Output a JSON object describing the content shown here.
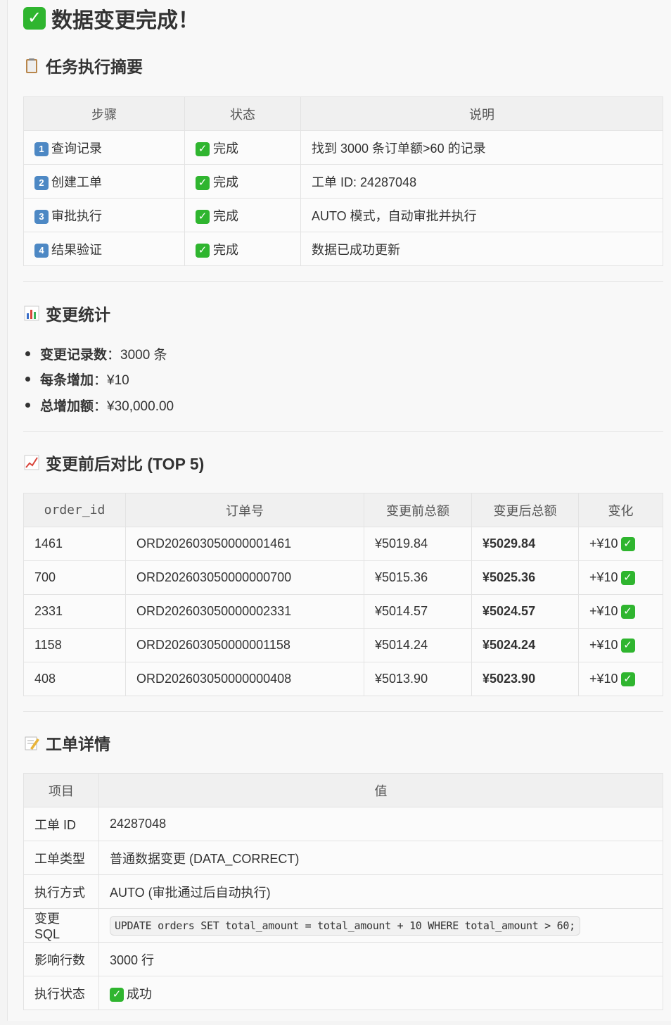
{
  "title": "数据变更完成！",
  "summary": {
    "heading": "任务执行摘要",
    "headers": [
      "步骤",
      "状态",
      "说明"
    ],
    "rows": [
      {
        "num": "1",
        "step": "查询记录",
        "status": "完成",
        "desc": "找到 3000 条订单额>60 的记录"
      },
      {
        "num": "2",
        "step": "创建工单",
        "status": "完成",
        "desc": "工单 ID: 24287048"
      },
      {
        "num": "3",
        "step": "审批执行",
        "status": "完成",
        "desc": "AUTO 模式，自动审批并执行"
      },
      {
        "num": "4",
        "step": "结果验证",
        "status": "完成",
        "desc": "数据已成功更新"
      }
    ]
  },
  "stats": {
    "heading": "变更统计",
    "items": [
      {
        "label": "变更记录数",
        "value": "：3000 条"
      },
      {
        "label": "每条增加",
        "value": "：¥10"
      },
      {
        "label": "总增加额",
        "value": "：¥30,000.00"
      }
    ]
  },
  "compare": {
    "heading": "变更前后对比 (TOP 5)",
    "headers": [
      "order_id",
      "订单号",
      "变更前总额",
      "变更后总额",
      "变化"
    ],
    "rows": [
      [
        "1461",
        "ORD202603050000001461",
        "¥5019.84",
        "¥5029.84",
        "+¥10"
      ],
      [
        "700",
        "ORD202603050000000700",
        "¥5015.36",
        "¥5025.36",
        "+¥10"
      ],
      [
        "2331",
        "ORD202603050000002331",
        "¥5014.57",
        "¥5024.57",
        "+¥10"
      ],
      [
        "1158",
        "ORD202603050000001158",
        "¥5014.24",
        "¥5024.24",
        "+¥10"
      ],
      [
        "408",
        "ORD202603050000000408",
        "¥5013.90",
        "¥5023.90",
        "+¥10"
      ]
    ]
  },
  "ticket": {
    "heading": "工单详情",
    "headers": [
      "项目",
      "值"
    ],
    "rows": [
      {
        "k": "工单 ID",
        "v": "24287048"
      },
      {
        "k": "工单类型",
        "v": "普通数据变更 (DATA_CORRECT)"
      },
      {
        "k": "执行方式",
        "v": "AUTO (审批通过后自动执行)"
      },
      {
        "k": "变更 SQL",
        "v": "UPDATE orders SET total_amount = total_amount + 10 WHERE total_amount > 60;"
      },
      {
        "k": "影响行数",
        "v": "3000 行"
      },
      {
        "k": "执行状态",
        "v": "成功"
      }
    ]
  },
  "colors": {
    "check": "#2fb52f",
    "keycap": "#4d88c4"
  }
}
